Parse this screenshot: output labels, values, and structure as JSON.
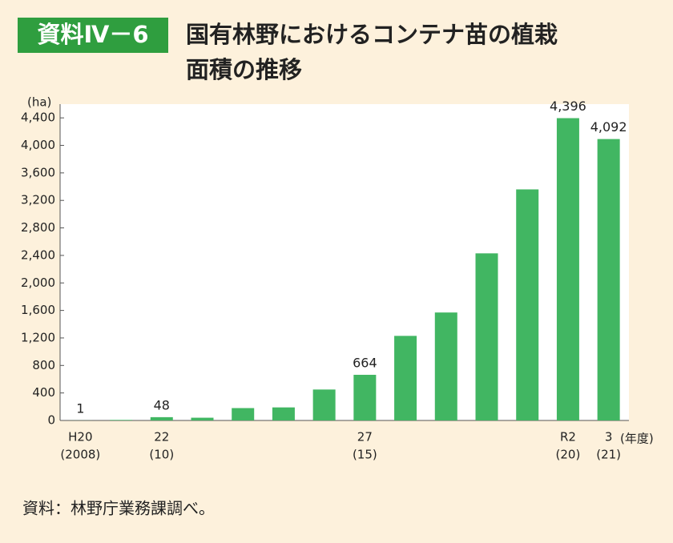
{
  "chart_data": {
    "type": "bar",
    "figure_label": "資料Ⅳ－6",
    "title_lines": [
      "国有林野におけるコンテナ苗の植栽",
      "面積の推移"
    ],
    "y_label": "(ha)",
    "x_label": "(年度)",
    "categories": [
      "H20",
      null,
      "22",
      null,
      null,
      null,
      null,
      "27",
      null,
      null,
      null,
      null,
      "R2",
      "3"
    ],
    "category_sublabels": [
      "(2008)",
      null,
      "(10)",
      null,
      null,
      null,
      null,
      "(15)",
      null,
      null,
      null,
      null,
      "(20)",
      "(21)"
    ],
    "values": [
      1,
      8,
      48,
      40,
      180,
      190,
      450,
      664,
      1230,
      1570,
      2430,
      3360,
      4396,
      4092
    ],
    "value_labels": [
      "1",
      null,
      "48",
      null,
      null,
      null,
      null,
      "664",
      null,
      null,
      null,
      null,
      "4,396",
      "4,092"
    ],
    "color": "#41b662",
    "ylim": [
      0,
      4600
    ],
    "yticks": [
      0,
      400,
      800,
      {
        "value": 1200,
        "label": "1,200"
      },
      {
        "value": 1600,
        "label": "1,600"
      },
      {
        "value": 2000,
        "label": "2,000"
      },
      {
        "value": 2400,
        "label": "2,400"
      },
      {
        "value": 2800,
        "label": "2,800"
      },
      {
        "value": 3200,
        "label": "3,200"
      },
      {
        "value": 3600,
        "label": "3,600"
      },
      {
        "value": 4000,
        "label": "4,000"
      },
      {
        "value": 4400,
        "label": "4,400"
      }
    ],
    "source": "資料：林野庁業務課調べ。"
  }
}
